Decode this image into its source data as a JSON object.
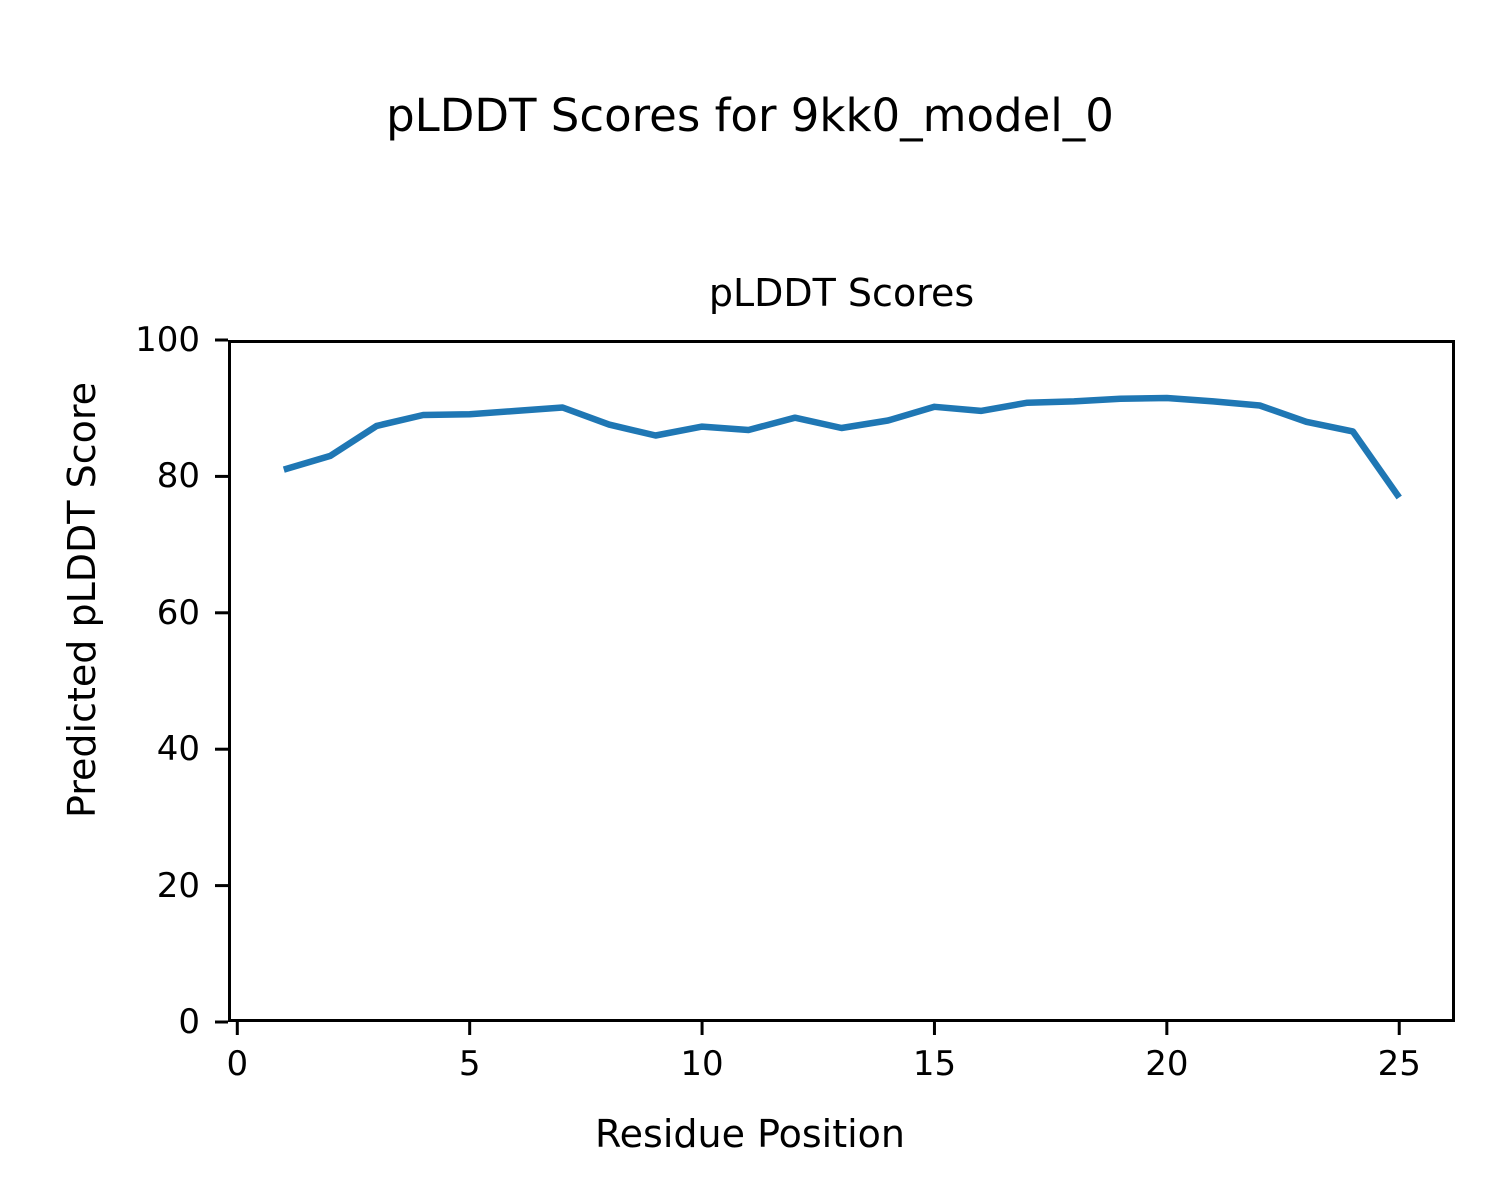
{
  "figure": {
    "suptitle": "pLDDT Scores for 9kk0_model_0",
    "background_color": "#ffffff",
    "text_color": "#000000"
  },
  "chart_data": {
    "type": "line",
    "title": "pLDDT Scores",
    "xlabel": "Residue Position",
    "ylabel": "Predicted pLDDT Score",
    "x": [
      1,
      2,
      3,
      4,
      5,
      6,
      7,
      8,
      9,
      10,
      11,
      12,
      13,
      14,
      15,
      16,
      17,
      18,
      19,
      20,
      21,
      22,
      23,
      24,
      25
    ],
    "series": [
      {
        "name": "pLDDT",
        "color": "#1f77b4",
        "values": [
          81.0,
          83.0,
          87.4,
          89.0,
          89.1,
          89.6,
          90.1,
          87.6,
          86.0,
          87.3,
          86.8,
          88.6,
          87.1,
          88.2,
          90.2,
          89.6,
          90.8,
          91.0,
          91.4,
          91.5,
          91.0,
          90.4,
          88.0,
          86.6,
          76.9
        ]
      }
    ],
    "xlim": [
      -0.2,
      26.2
    ],
    "ylim": [
      0,
      100
    ],
    "xticks": [
      0,
      5,
      10,
      15,
      20,
      25
    ],
    "yticks": [
      0,
      20,
      40,
      60,
      80,
      100
    ],
    "grid": false,
    "legend": false,
    "frame_color": "#000000",
    "line_width": 6.5
  }
}
